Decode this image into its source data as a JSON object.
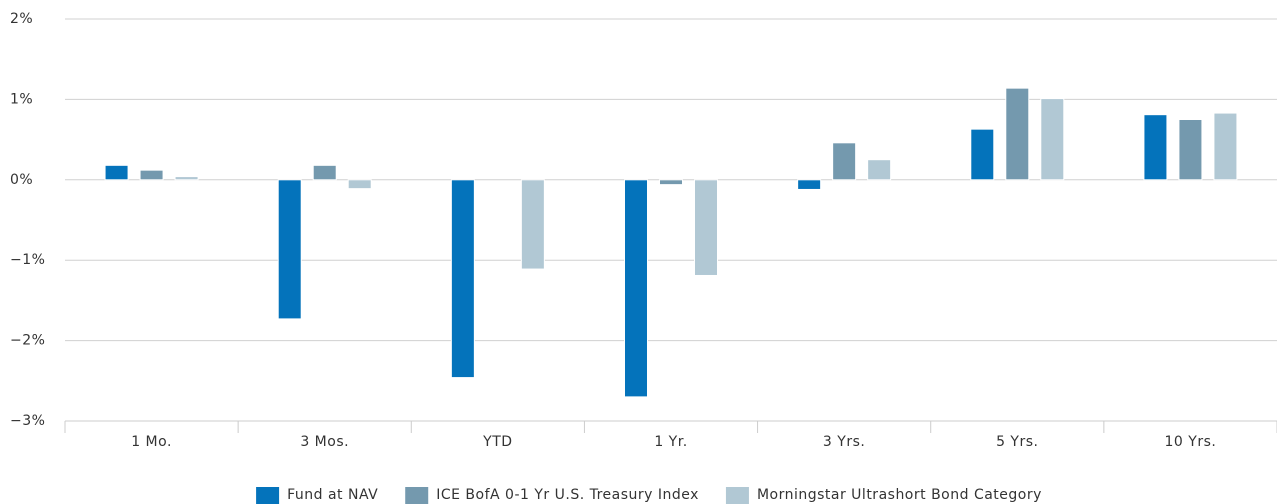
{
  "chart_data": {
    "type": "bar",
    "categories": [
      "1 Mo.",
      "3 Mos.",
      "YTD",
      "1 Yr.",
      "3 Yrs.",
      "5 Yrs.",
      "10 Yrs."
    ],
    "series": [
      {
        "name": "Fund at NAV",
        "color": "#0473bb",
        "values": [
          0.18,
          -1.73,
          -2.46,
          -2.7,
          -0.12,
          0.63,
          0.81
        ]
      },
      {
        "name": "ICE BofA 0-1 Yr U.S. Treasury Index",
        "color": "#7499ae",
        "values": [
          0.12,
          0.18,
          0,
          -0.06,
          0.46,
          1.14,
          0.75
        ]
      },
      {
        "name": "Morningstar Ultrashort Bond Category",
        "color": "#b1c8d4",
        "values": [
          0.04,
          -0.11,
          -1.11,
          -1.19,
          0.25,
          1.01,
          0.83
        ]
      }
    ],
    "ylim": [
      -3,
      2
    ],
    "yticks": [
      {
        "value": -3,
        "label": "−3%"
      },
      {
        "value": -2,
        "label": "−2%"
      },
      {
        "value": -1,
        "label": "−1%"
      },
      {
        "value": 0,
        "label": "0%"
      },
      {
        "value": 1,
        "label": "1%"
      },
      {
        "value": 2,
        "label": "2%"
      }
    ],
    "grid": true,
    "legend": "bottom"
  }
}
